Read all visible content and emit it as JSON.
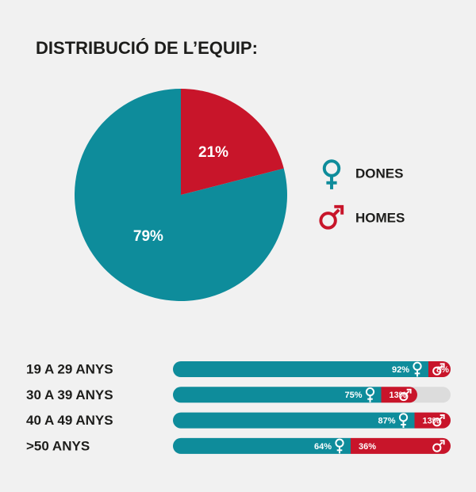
{
  "chart_data": [
    {
      "type": "pie",
      "title": "DISTRIBUCIÓ DE L’EQUIP:",
      "categories": [
        "DONES",
        "HOMES"
      ],
      "values": [
        79,
        21
      ],
      "value_labels": [
        "79%",
        "21%"
      ],
      "colors": [
        "#0e8c9b",
        "#c8152a"
      ]
    },
    {
      "type": "bar",
      "orientation": "horizontal",
      "categories": [
        "19 A 29 ANYS",
        "30 A 39 ANYS",
        "40 A 49 ANYS",
        ">50 ANYS"
      ],
      "xlim": [
        0,
        100
      ],
      "series": [
        {
          "name": "DONES",
          "color": "#0e8c9b",
          "values": [
            92,
            75,
            87,
            64
          ],
          "value_labels": [
            "92%",
            "75%",
            "87%",
            "64%"
          ]
        },
        {
          "name": "HOMES",
          "color": "#c8152a",
          "values": [
            8,
            13,
            13,
            36
          ],
          "value_labels": [
            "8%",
            "13%",
            "13%",
            "36%"
          ]
        }
      ]
    }
  ]
}
